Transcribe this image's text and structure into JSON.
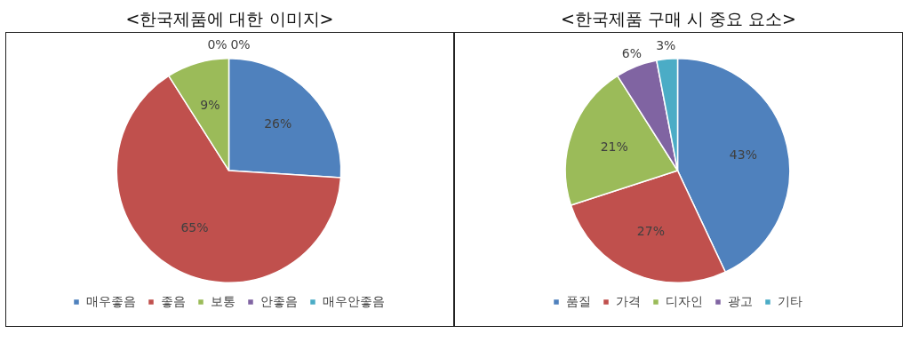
{
  "chart_data": [
    {
      "type": "pie",
      "title": "<한국제품에 대한 이미지>",
      "categories": [
        "매우좋음",
        "좋음",
        "보통",
        "안좋음",
        "매우안좋음"
      ],
      "values": [
        26,
        65,
        9,
        0,
        0
      ],
      "colors": [
        "#4f81bd",
        "#c0504d",
        "#9bbb59",
        "#8064a2",
        "#4bacc6"
      ],
      "value_labels": [
        "26%",
        "65%",
        "9%",
        "0%",
        "0%"
      ],
      "legend": "bottom"
    },
    {
      "type": "pie",
      "title": "<한국제품 구매 시 중요 요소>",
      "categories": [
        "품질",
        "가격",
        "디자인",
        "광고",
        "기타"
      ],
      "values": [
        43,
        27,
        21,
        6,
        3
      ],
      "colors": [
        "#4f81bd",
        "#c0504d",
        "#9bbb59",
        "#8064a2",
        "#4bacc6"
      ],
      "value_labels": [
        "43%",
        "27%",
        "21%",
        "6%",
        "3%"
      ],
      "legend": "bottom"
    }
  ]
}
